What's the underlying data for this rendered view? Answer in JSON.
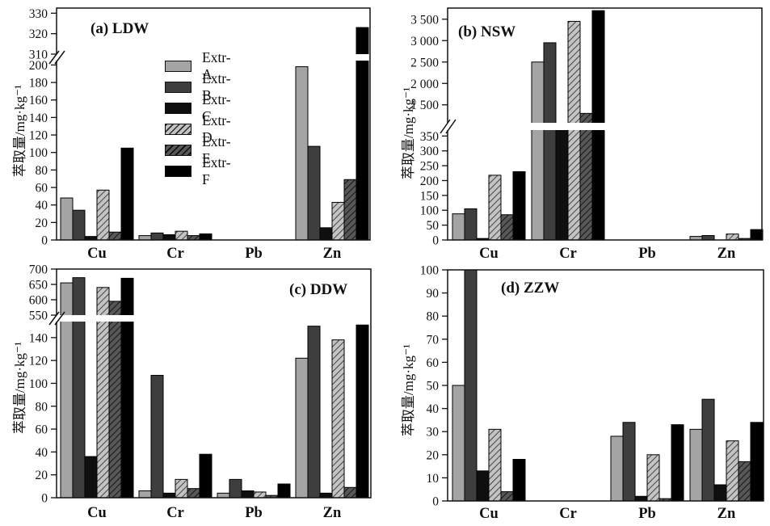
{
  "figure": {
    "panel_labels": [
      "(a) LDW",
      "(b) NSW",
      "(c) DDW",
      "(d) ZZW"
    ],
    "y_axis_title": "萃取量/mg·kg⁻¹",
    "categories": [
      "Cu",
      "Cr",
      "Pb",
      "Zn"
    ]
  },
  "legend": {
    "position": "inside-panel-a-top-left",
    "items": [
      {
        "key": "A",
        "label": "Extr-A"
      },
      {
        "key": "B",
        "label": "Extr-B"
      },
      {
        "key": "C",
        "label": "Extr-C"
      },
      {
        "key": "D",
        "label": "Extr-D"
      },
      {
        "key": "E",
        "label": "Extr-E"
      },
      {
        "key": "F",
        "label": "Extr-F"
      }
    ]
  },
  "series_styles": {
    "Extr-A": {
      "fill": "#a4a4a4"
    },
    "Extr-B": {
      "fill": "#3e3e3e"
    },
    "Extr-C": {
      "fill": "#0f0f0f"
    },
    "Extr-D": {
      "fill": "#c3c3c3",
      "hatch": "#2e2e2e"
    },
    "Extr-E": {
      "fill": "#575757",
      "hatch": "#0a0a0a"
    },
    "Extr-F": {
      "fill": "#000000"
    }
  },
  "chart_data": [
    {
      "type": "bar",
      "panel": "a",
      "title": "(a) LDW",
      "ylabel": "萃取量/mg·kg⁻¹",
      "categories": [
        "Cu",
        "Cr",
        "Pb",
        "Zn"
      ],
      "axis": {
        "broken": true,
        "segments": [
          {
            "range": [
              0,
              205
            ],
            "ticks": [
              0,
              20,
              40,
              60,
              80,
              100,
              120,
              140,
              160,
              180,
              200
            ]
          },
          {
            "range": [
              310,
              332.5
            ],
            "ticks": [
              310,
              320,
              330
            ]
          }
        ]
      },
      "series": [
        {
          "name": "Extr-A",
          "values": [
            48,
            5,
            0.5,
            198
          ]
        },
        {
          "name": "Extr-B",
          "values": [
            34,
            8,
            0.5,
            107
          ]
        },
        {
          "name": "Extr-C",
          "values": [
            4,
            6,
            0.5,
            14
          ]
        },
        {
          "name": "Extr-D",
          "values": [
            57,
            10,
            0.5,
            43
          ]
        },
        {
          "name": "Extr-E",
          "values": [
            9,
            5,
            0.5,
            69
          ]
        },
        {
          "name": "Extr-F",
          "values": [
            105,
            7,
            0.5,
            323
          ]
        }
      ]
    },
    {
      "type": "bar",
      "panel": "b",
      "title": "(b) NSW",
      "ylabel": "萃取量/mg·kg⁻¹",
      "categories": [
        "Cu",
        "Cr",
        "Pb",
        "Zn"
      ],
      "axis": {
        "broken": true,
        "segments": [
          {
            "range": [
              0,
              370
            ],
            "ticks": [
              0,
              50,
              100,
              150,
              200,
              250,
              300,
              350
            ]
          },
          {
            "range": [
              1080,
              3760
            ],
            "ticks": [
              1500,
              2000,
              2500,
              3000,
              3500
            ]
          }
        ]
      },
      "series": [
        {
          "name": "Extr-A",
          "values": [
            88,
            2500,
            0.5,
            12
          ]
        },
        {
          "name": "Extr-B",
          "values": [
            105,
            2950,
            0.5,
            15
          ]
        },
        {
          "name": "Extr-C",
          "values": [
            5,
            370,
            0.5,
            1
          ]
        },
        {
          "name": "Extr-D",
          "values": [
            218,
            3450,
            0.5,
            20
          ]
        },
        {
          "name": "Extr-E",
          "values": [
            85,
            1300,
            0.5,
            5
          ]
        },
        {
          "name": "Extr-F",
          "values": [
            230,
            3700,
            0.5,
            35
          ]
        }
      ]
    },
    {
      "type": "bar",
      "panel": "c",
      "title": "(c) DDW",
      "ylabel": "萃取量/mg·kg⁻¹",
      "categories": [
        "Cu",
        "Cr",
        "Pb",
        "Zn"
      ],
      "axis": {
        "broken": true,
        "segments": [
          {
            "range": [
              0,
              154
            ],
            "ticks": [
              0,
              20,
              40,
              60,
              80,
              100,
              120,
              140
            ]
          },
          {
            "range": [
              550,
              700
            ],
            "ticks": [
              550,
              600,
              650,
              700
            ]
          }
        ]
      },
      "series": [
        {
          "name": "Extr-A",
          "values": [
            655,
            6,
            4,
            122
          ]
        },
        {
          "name": "Extr-B",
          "values": [
            672,
            107,
            16,
            150
          ]
        },
        {
          "name": "Extr-C",
          "values": [
            36,
            4,
            6,
            4
          ]
        },
        {
          "name": "Extr-D",
          "values": [
            640,
            16,
            5,
            138
          ]
        },
        {
          "name": "Extr-E",
          "values": [
            595,
            8,
            2,
            9
          ]
        },
        {
          "name": "Extr-F",
          "values": [
            670,
            38,
            12,
            151
          ]
        }
      ]
    },
    {
      "type": "bar",
      "panel": "d",
      "title": "(d) ZZW",
      "ylabel": "萃取量/mg·kg⁻¹",
      "categories": [
        "Cu",
        "Cr",
        "Pb",
        "Zn"
      ],
      "axis": {
        "broken": false,
        "segments": [
          {
            "range": [
              0,
              100
            ],
            "ticks": [
              0,
              10,
              20,
              30,
              40,
              50,
              60,
              70,
              80,
              90,
              100
            ]
          }
        ]
      },
      "series": [
        {
          "name": "Extr-A",
          "values": [
            50,
            0,
            28,
            31
          ]
        },
        {
          "name": "Extr-B",
          "values": [
            100,
            0,
            34,
            44
          ]
        },
        {
          "name": "Extr-C",
          "values": [
            13,
            0,
            2,
            7
          ]
        },
        {
          "name": "Extr-D",
          "values": [
            31,
            0,
            20,
            26
          ]
        },
        {
          "name": "Extr-E",
          "values": [
            4,
            0,
            1,
            17
          ]
        },
        {
          "name": "Extr-F",
          "values": [
            18,
            0,
            33,
            34
          ]
        }
      ]
    }
  ]
}
